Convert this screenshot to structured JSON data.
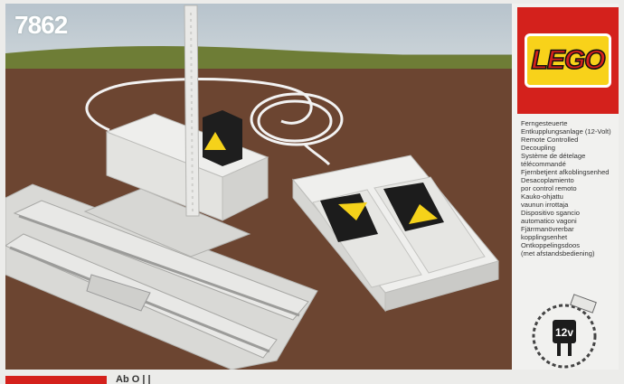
{
  "box": {
    "set_number": "7862",
    "brand": "LEGO",
    "voltage": "12v",
    "description_lines": [
      "Ferngesteuerte",
      "Entkupplungsanlage (12-Volt)",
      "Remote Controlled",
      "Decoupling",
      "Système de dételage",
      "télécommandé",
      "Fjernbetjent afkoblingsenhed",
      "Desacoplamiento",
      "por control remoto",
      "Kauko-ohjattu",
      "vaunun irrottaja",
      "Dispositivo sgancio",
      "automatico vagoni",
      "Fjärrmanövrerbar",
      "kopplingsenhet",
      "Ontkoppelingsdoos",
      "(met afstandsbediening)"
    ],
    "bottom_text": "Ab  O  |  |",
    "colors": {
      "brand_red": "#d4211c",
      "brand_yellow": "#f8d21a",
      "arrow_yellow": "#f5d21a"
    }
  }
}
